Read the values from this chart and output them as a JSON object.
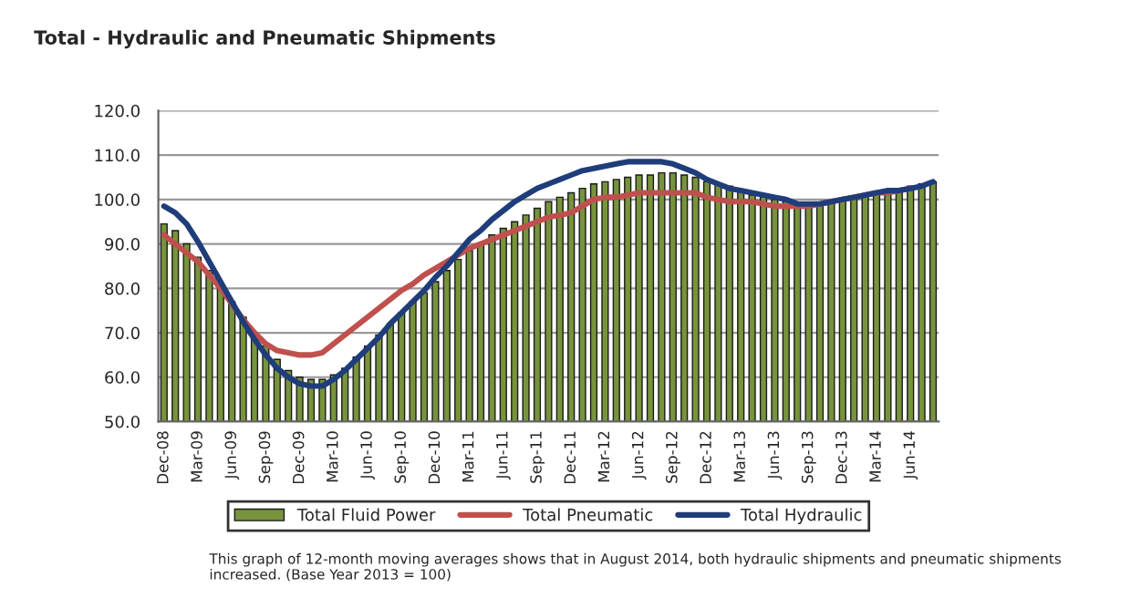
{
  "chart_data": {
    "type": "bar",
    "title": "Total - Hydraulic and Pneumatic Shipments",
    "annotations": [
      "This graph of 12-month moving averages shows that in August 2014, both hydraulic shipments and pneumatic shipments increased. (Base Year 2013 = 100)"
    ],
    "categories": [
      "Dec-08",
      null,
      null,
      "Mar-09",
      null,
      null,
      "Jun-09",
      null,
      null,
      "Sep-09",
      null,
      null,
      "Dec-09",
      null,
      null,
      "Mar-10",
      null,
      null,
      "Jun-10",
      null,
      null,
      "Sep-10",
      null,
      null,
      "Dec-10",
      null,
      null,
      "Mar-11",
      null,
      null,
      "Jun-11",
      null,
      null,
      "Sep-11",
      null,
      null,
      "Dec-11",
      null,
      null,
      "Mar-12",
      null,
      null,
      "Jun-12",
      null,
      null,
      "Sep-12",
      null,
      null,
      "Dec-12",
      null,
      null,
      "Mar-13",
      null,
      null,
      "Jun-13",
      null,
      null,
      "Sep-13",
      null,
      null,
      "Dec-13",
      null,
      null,
      "Mar-14",
      null,
      null,
      "Jun-14",
      null,
      null
    ],
    "series": [
      {
        "name": "Total Fluid Power",
        "color": "#77933c",
        "values": [
          94.5,
          93,
          90,
          87,
          84,
          80.5,
          77,
          73.5,
          70,
          67,
          64,
          61.5,
          60,
          59.5,
          59.5,
          60.5,
          62,
          64.5,
          67,
          69.5,
          72,
          74.5,
          77,
          79,
          81.5,
          84,
          86.5,
          88.5,
          90,
          92,
          93.5,
          95,
          96.5,
          98,
          99.5,
          100.5,
          101.5,
          102.5,
          103.5,
          104,
          104.5,
          105,
          105.5,
          105.5,
          106,
          106,
          105.5,
          105,
          104,
          103.5,
          103,
          102,
          101,
          100.5,
          100,
          99.5,
          99,
          99,
          99,
          99.5,
          100,
          100.5,
          101,
          101.5,
          102,
          102.5,
          103,
          103.5,
          104
        ]
      },
      {
        "name": "Total Pneumatic",
        "type": "line",
        "color": "#c0504d",
        "values": [
          92,
          90,
          88,
          86,
          83,
          80,
          76.5,
          73,
          70,
          67.5,
          66,
          65.5,
          65,
          65,
          65.5,
          67.5,
          69.5,
          71.5,
          73.5,
          75.5,
          77.5,
          79.5,
          81,
          83,
          84.5,
          86,
          87.5,
          89,
          90,
          91,
          92,
          93,
          94,
          95,
          96,
          96.5,
          97,
          98.5,
          100,
          100.5,
          100.5,
          101,
          101.5,
          101.5,
          101.5,
          101.5,
          101.5,
          101.5,
          100.5,
          100,
          99.5,
          99.5,
          99.5,
          99,
          98.5,
          98.5,
          98.5,
          98.5,
          99,
          99.5,
          100,
          100.5,
          101,
          101.5,
          101.5,
          102,
          102.5,
          null,
          null
        ]
      },
      {
        "name": "Total Hydraulic",
        "type": "line",
        "color": "#1f3d7a",
        "values": [
          98.5,
          97,
          94.5,
          90.5,
          86,
          81.5,
          77,
          72.5,
          68.5,
          65,
          62,
          60,
          58.5,
          58,
          58,
          59.5,
          61.5,
          64,
          66.5,
          69,
          72,
          74.5,
          77,
          79.5,
          82.5,
          85,
          88,
          91,
          93,
          95.5,
          97.5,
          99.5,
          101,
          102.5,
          103.5,
          104.5,
          105.5,
          106.5,
          107,
          107.5,
          108,
          108.5,
          108.5,
          108.5,
          108.5,
          108,
          107,
          106,
          104.5,
          103.5,
          102.5,
          102,
          101.5,
          101,
          100.5,
          100,
          99,
          99,
          99,
          99.5,
          100,
          100.5,
          101,
          101.5,
          102,
          102,
          102.5,
          103,
          104
        ]
      }
    ],
    "ylim": [
      50,
      120
    ],
    "yticks": [
      {
        "value": 50,
        "label": "50.0"
      },
      {
        "value": 60,
        "label": "60.0"
      },
      {
        "value": 70,
        "label": "70.0"
      },
      {
        "value": 80,
        "label": "80.0"
      },
      {
        "value": 90,
        "label": "90.0"
      },
      {
        "value": 100,
        "label": "100.0"
      },
      {
        "value": 110,
        "label": "110.0"
      },
      {
        "value": 120,
        "label": "120.0"
      }
    ],
    "grid": "y",
    "legend": "bottom"
  }
}
